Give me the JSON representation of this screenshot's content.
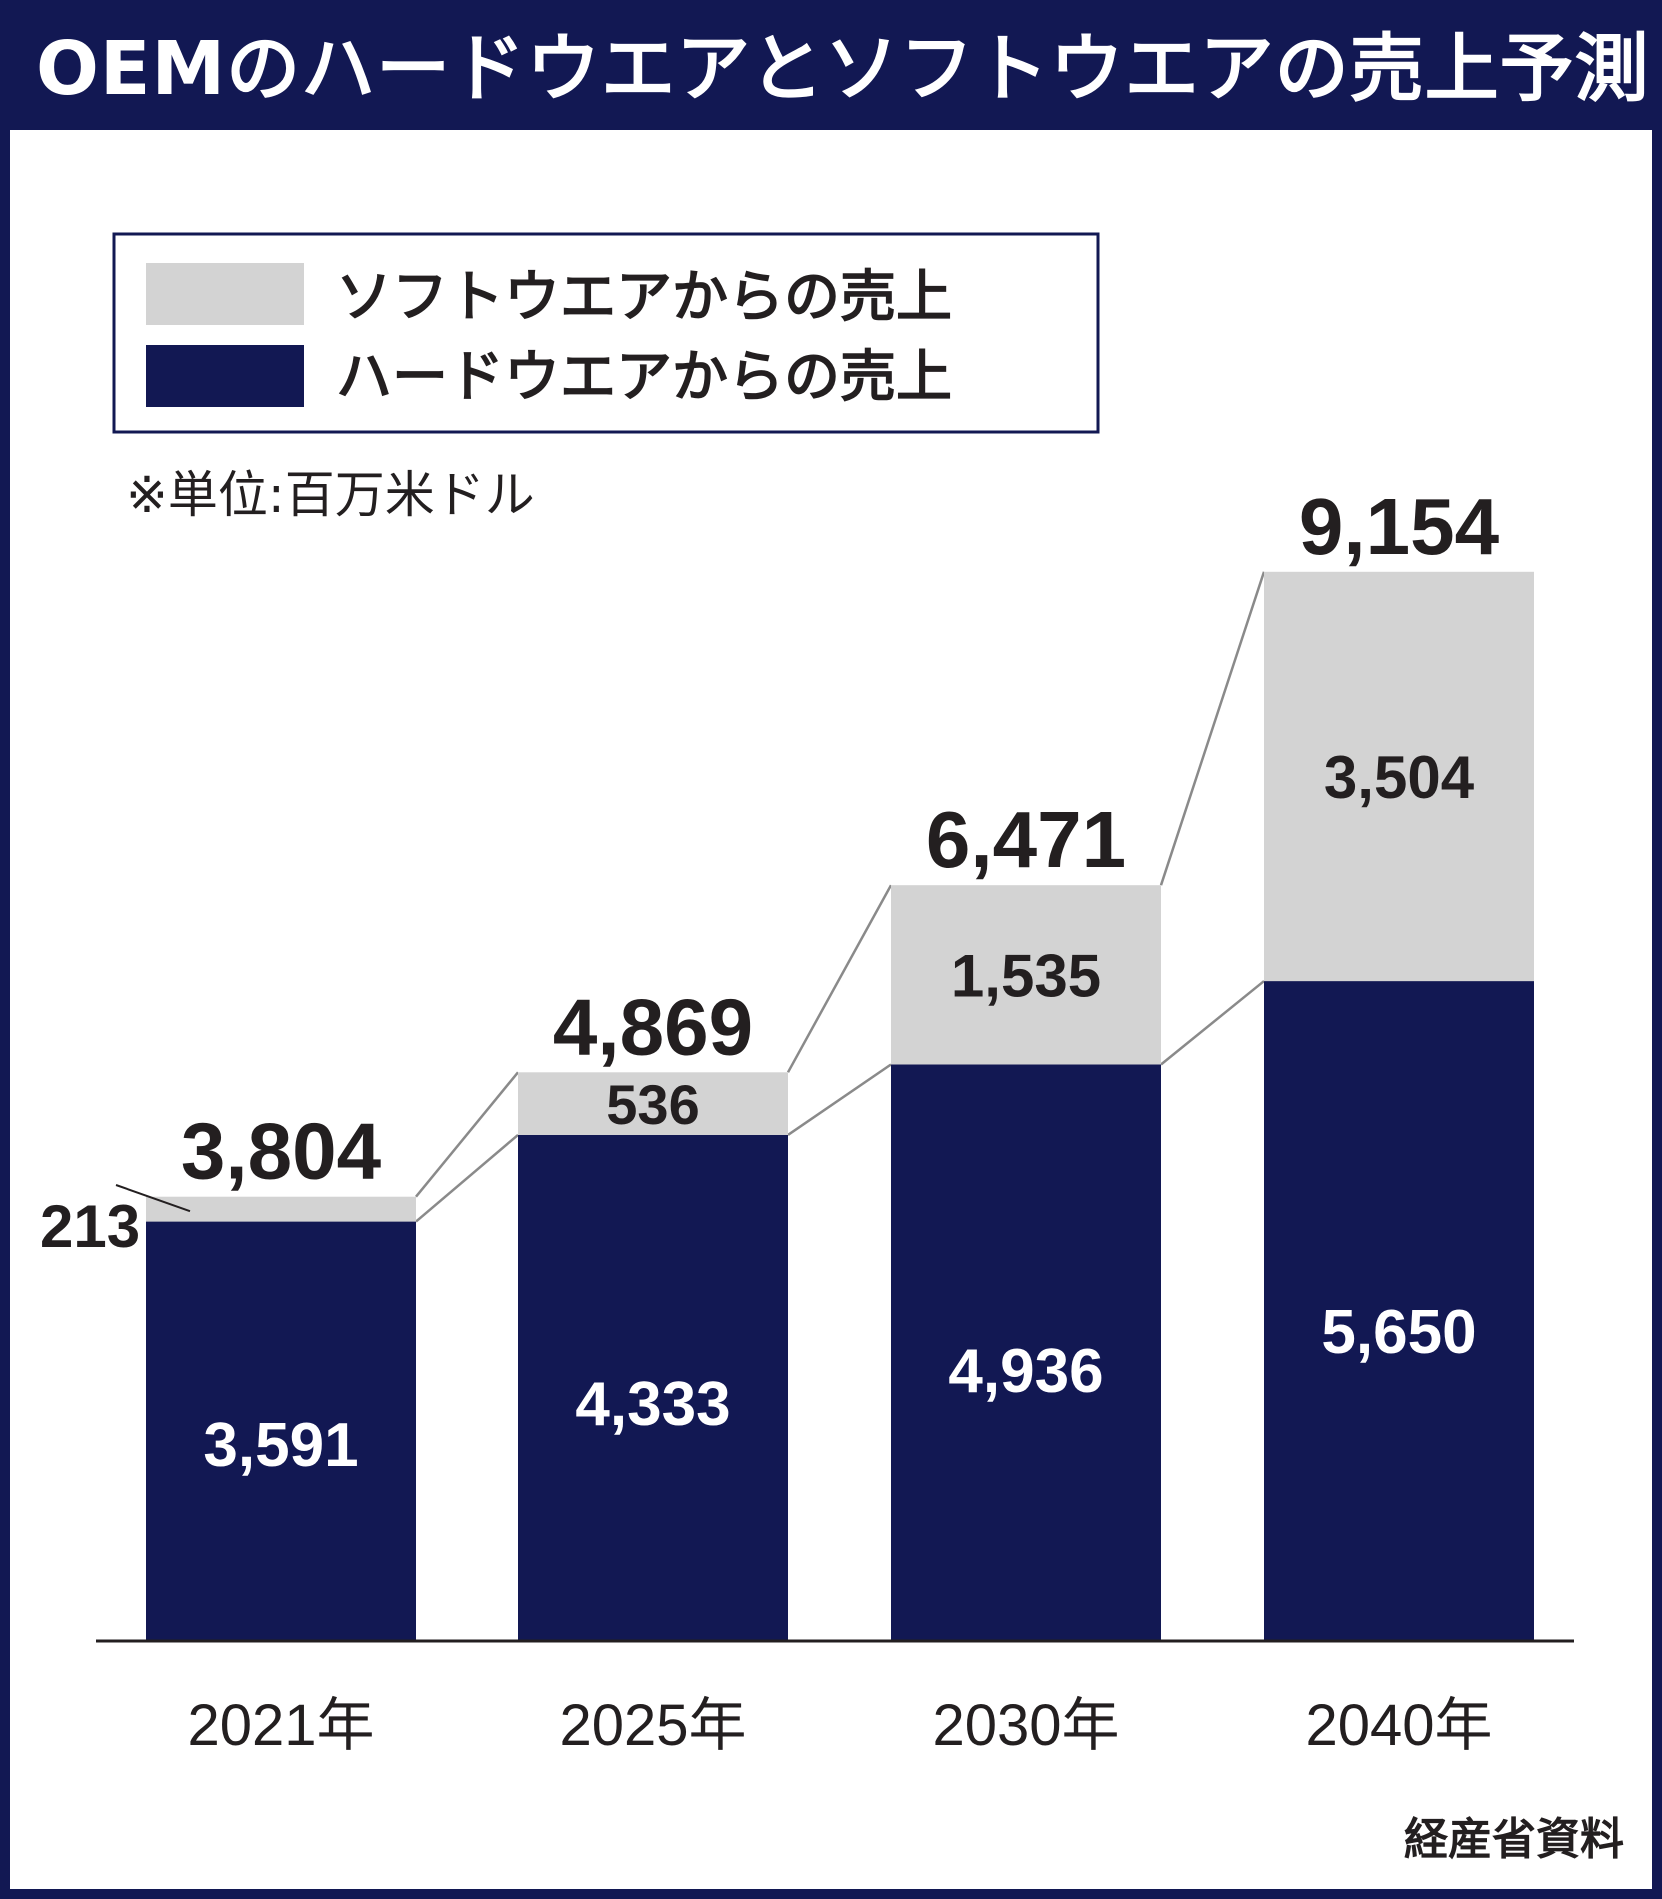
{
  "title": "OEMのハードウエアとソフトウエアの売上予測",
  "source": "経産省資料",
  "colors": {
    "hardware": "#121853",
    "software": "#d3d3d3",
    "frame": "#121853",
    "text": "#231f20",
    "connector": "#8a8a8a"
  },
  "chart_data": {
    "type": "bar",
    "stacked": true,
    "categories": [
      "2021年",
      "2025年",
      "2030年",
      "2040年"
    ],
    "series": [
      {
        "name": "ハードウエアからの売上",
        "values": [
          3591,
          4333,
          4936,
          5650
        ],
        "labels": [
          "3,591",
          "4,333",
          "4,936",
          "5,650"
        ]
      },
      {
        "name": "ソフトウエアからの売上",
        "values": [
          213,
          536,
          1535,
          3504
        ],
        "labels": [
          "213",
          "536",
          "1,535",
          "3,504"
        ]
      }
    ],
    "totals": [
      3804,
      4869,
      6471,
      9154
    ],
    "total_labels": [
      "3,804",
      "4,869",
      "6,471",
      "9,154"
    ],
    "unit_note": "※単位:百万米ドル",
    "legend": [
      {
        "label": "ソフトウエアからの売上",
        "series": "software"
      },
      {
        "label": "ハードウエアからの売上",
        "series": "hardware"
      }
    ],
    "legend_position": "top-left",
    "grid": false,
    "connector_lines": true
  }
}
